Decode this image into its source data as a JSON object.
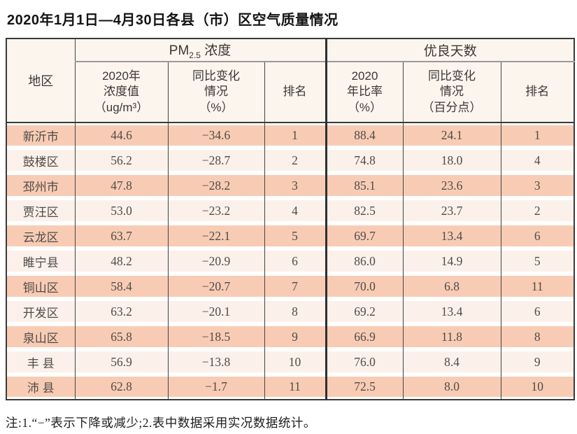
{
  "title": "2020年1月1日—4月30日各县（市）区空气质量情况",
  "note": "注:1.“−”表示下降或减少;2.表中数据采用实况数据统计。",
  "colors": {
    "row_odd_bg": "#f8ccb4",
    "row_even_bg": "#fcf1ea",
    "header_bg": "#fcf5ee",
    "border_dark": "#3a3a3a",
    "group_underline": "#9a9a9a",
    "text": "#4f4b49"
  },
  "table": {
    "region_header": "地区",
    "groups": {
      "pm": {
        "prefix": "PM",
        "sub": "2.5",
        "suffix": " 浓度"
      },
      "days": {
        "label": "优良天数"
      }
    },
    "sub_headers": {
      "pm_value": "2020年\n浓度值\n（ug/m³）",
      "pm_change": "同比变化\n情况\n（%）",
      "pm_rank": "排名",
      "days_rate": "2020\n年比率\n（%）",
      "days_change": "同比变化\n情况\n（百分点）",
      "days_rank": "排名"
    },
    "rows": [
      [
        "新沂市",
        "44.6",
        "−34.6",
        "1",
        "88.4",
        "24.1",
        "1"
      ],
      [
        "鼓楼区",
        "56.2",
        "−28.7",
        "2",
        "74.8",
        "18.0",
        "4"
      ],
      [
        "邳州市",
        "47.8",
        "−28.2",
        "3",
        "85.1",
        "23.6",
        "3"
      ],
      [
        "贾汪区",
        "53.0",
        "−23.2",
        "4",
        "82.5",
        "23.7",
        "2"
      ],
      [
        "云龙区",
        "63.7",
        "−22.1",
        "5",
        "69.7",
        "13.4",
        "6"
      ],
      [
        "睢宁县",
        "48.2",
        "−20.9",
        "6",
        "86.0",
        "14.9",
        "5"
      ],
      [
        "铜山区",
        "58.4",
        "−20.7",
        "7",
        "70.0",
        "6.8",
        "11"
      ],
      [
        "开发区",
        "63.2",
        "−20.1",
        "8",
        "69.2",
        "13.4",
        "6"
      ],
      [
        "泉山区",
        "65.8",
        "−18.5",
        "9",
        "66.9",
        "11.8",
        "8"
      ],
      [
        "丰 县",
        "56.9",
        "−13.8",
        "10",
        "76.0",
        "8.4",
        "9"
      ],
      [
        "沛 县",
        "62.8",
        "−1.7",
        "11",
        "72.5",
        "8.0",
        "10"
      ]
    ]
  }
}
